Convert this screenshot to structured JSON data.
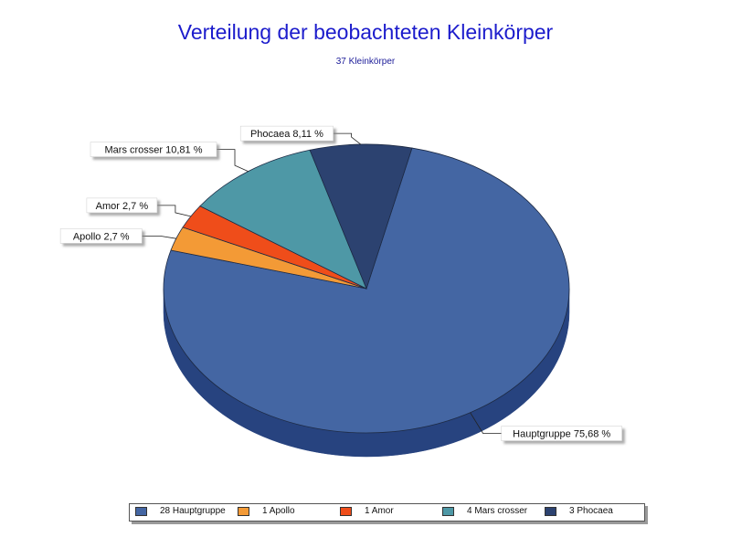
{
  "chart_data": {
    "type": "pie",
    "title": "Verteilung der beobachteten Kleinkörper",
    "subtitle": "37 Kleinkörper",
    "total": 37,
    "slices": [
      {
        "name": "Hauptgruppe",
        "count": 28,
        "percent": 75.68,
        "label": "Hauptgruppe 75,68 %",
        "legend": "28 Hauptgruppe",
        "color": "#4466a3",
        "side": "#27437f"
      },
      {
        "name": "Apollo",
        "count": 1,
        "percent": 2.7,
        "label": "Apollo 2,7 %",
        "legend": "1 Apollo",
        "color": "#f39a36",
        "side": "#b86d1e"
      },
      {
        "name": "Amor",
        "count": 1,
        "percent": 2.7,
        "label": "Amor 2,7 %",
        "legend": "1 Amor",
        "color": "#ef4d1a",
        "side": "#b8350d"
      },
      {
        "name": "Mars crosser",
        "count": 4,
        "percent": 10.81,
        "label": "Mars crosser 10,81 %",
        "legend": "4 Mars crosser",
        "color": "#4e98a6",
        "side": "#36717c"
      },
      {
        "name": "Phocaea",
        "count": 3,
        "percent": 8.11,
        "label": "Phocaea 8,11 %",
        "legend": "3 Phocaea",
        "color": "#2c4270",
        "side": "#1c2b4c"
      }
    ],
    "legend_position": "bottom"
  }
}
